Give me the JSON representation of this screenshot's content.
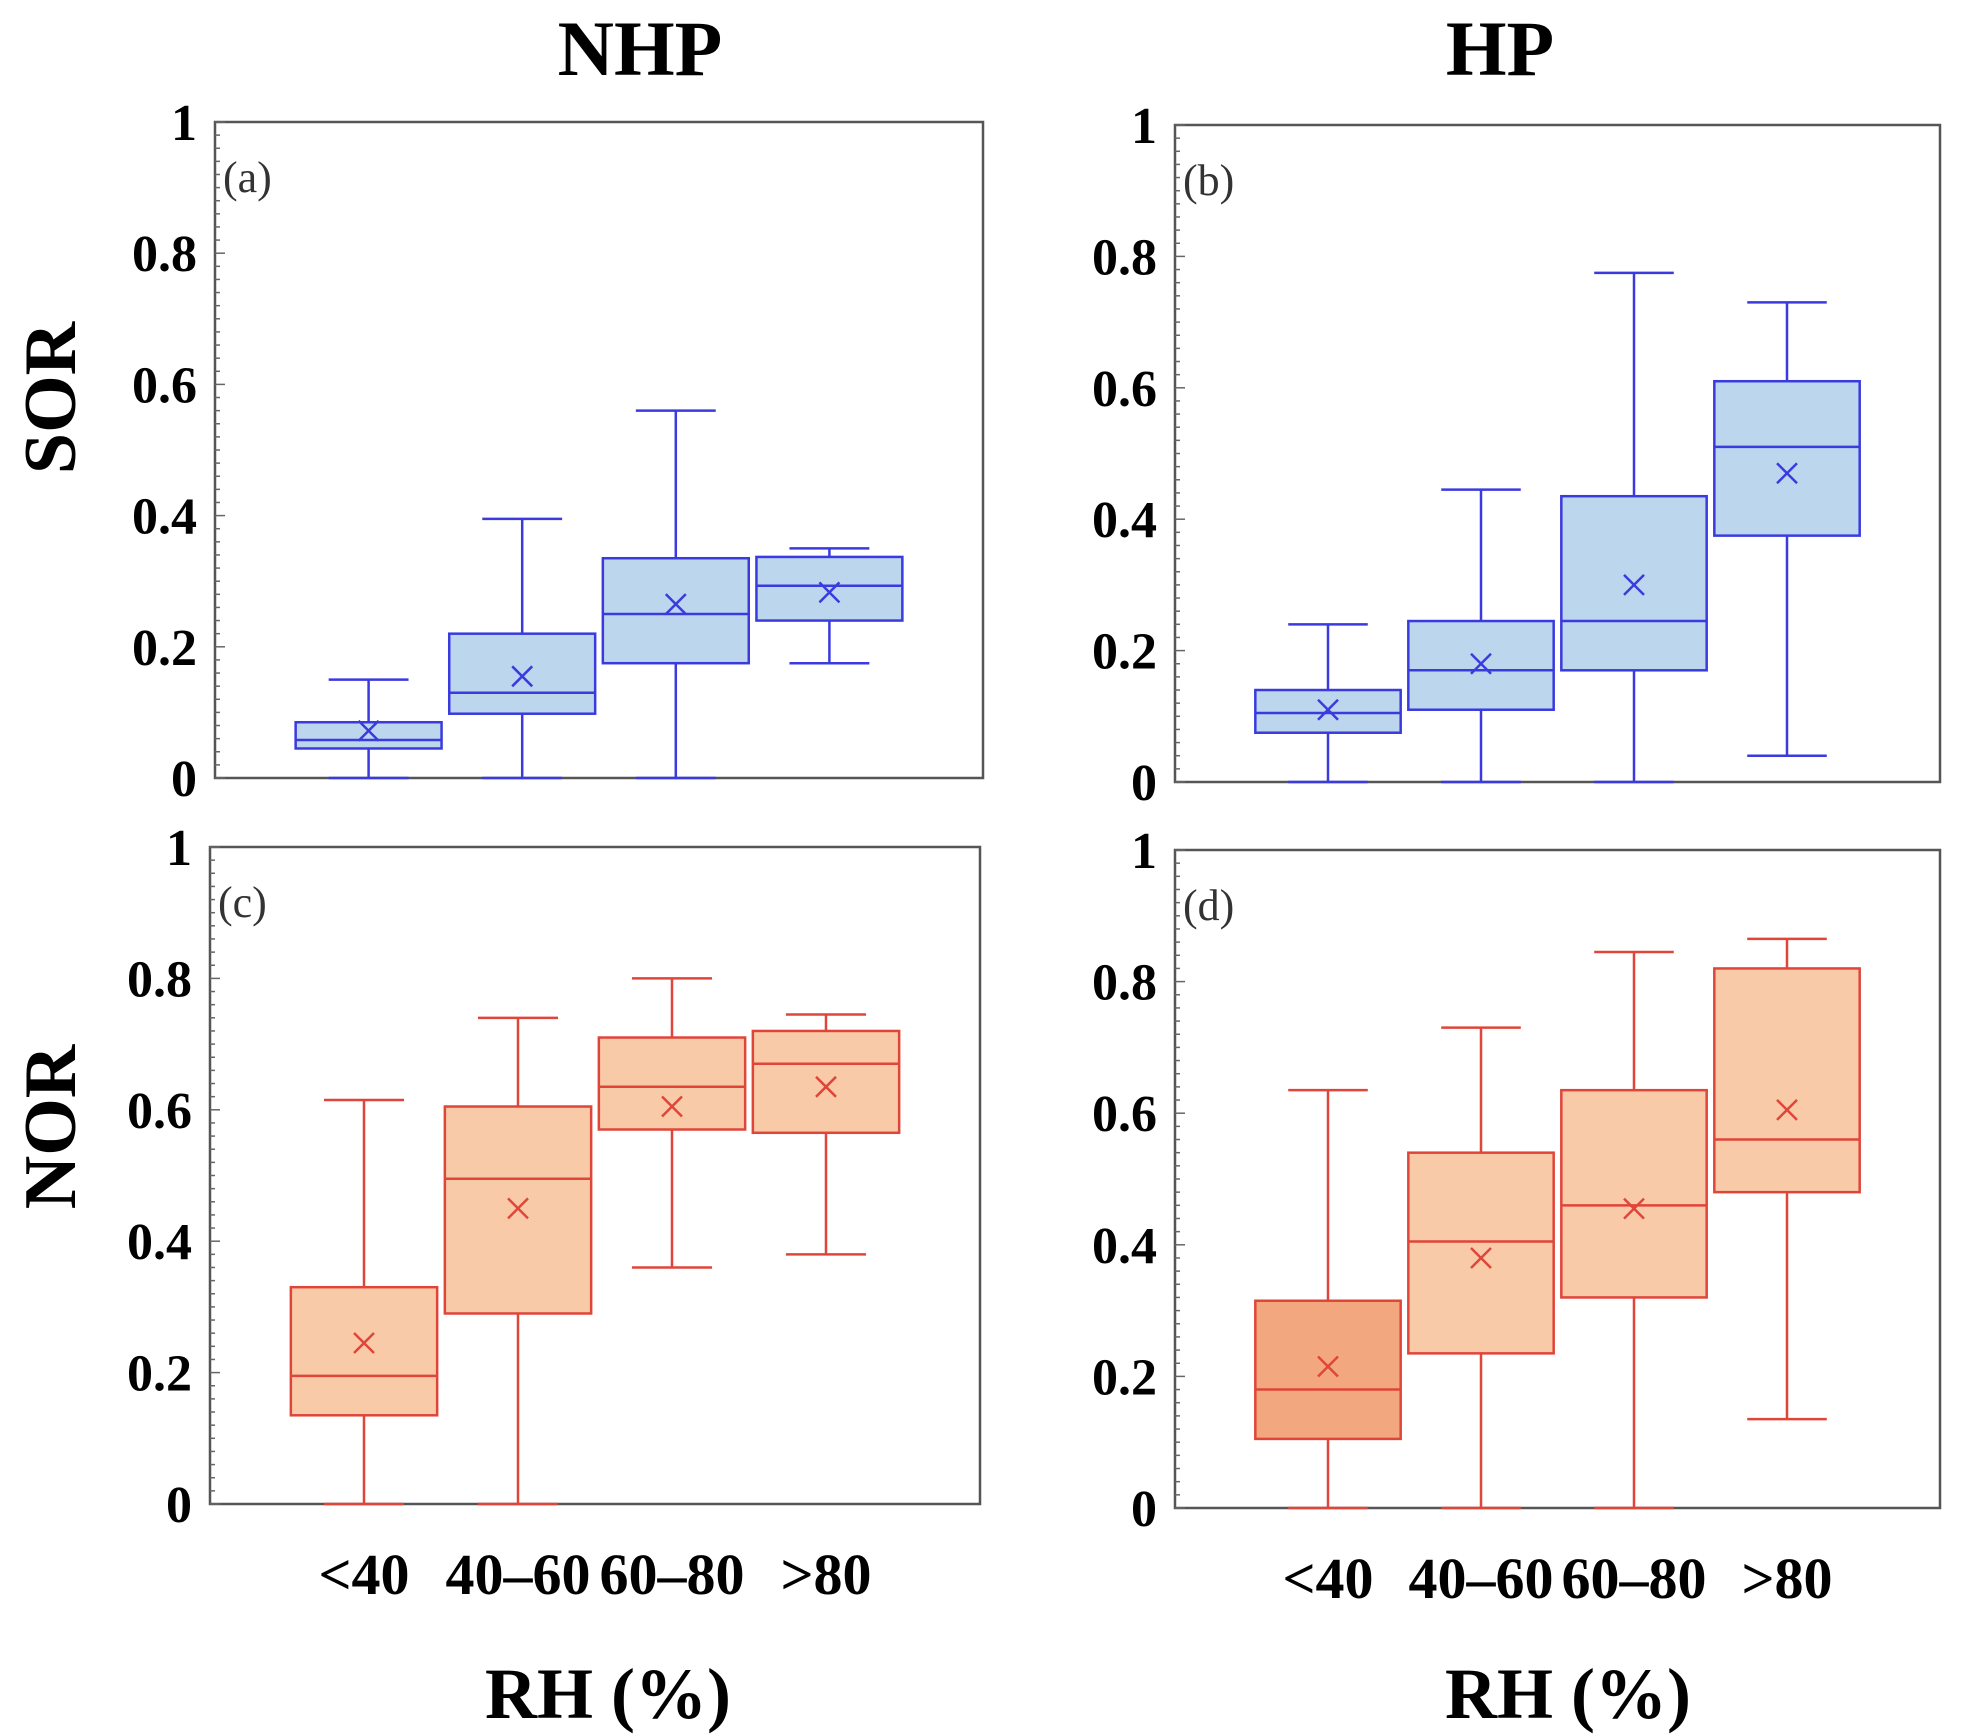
{
  "figure": {
    "column_titles": [
      "NHP",
      "HP"
    ],
    "row_labels": [
      "SOR",
      "NOR"
    ],
    "x_title": "RH (%)"
  },
  "chart_data": [
    {
      "type": "box",
      "panel": "(a)",
      "group": "NHP",
      "ylabel": "SOR",
      "ylim": [
        0,
        1
      ],
      "yticks": [
        "0",
        "0.2",
        "0.4",
        "0.6",
        "0.8",
        "1"
      ],
      "categories": [
        "<40",
        "40–60",
        "60–80",
        ">80"
      ],
      "color": "#3a3adf",
      "fill": "#bcd6ee",
      "boxes": [
        {
          "min": 0.0,
          "q1": 0.045,
          "median": 0.058,
          "q3": 0.085,
          "max": 0.15,
          "mean": 0.072
        },
        {
          "min": 0.0,
          "q1": 0.098,
          "median": 0.13,
          "q3": 0.22,
          "max": 0.395,
          "mean": 0.155
        },
        {
          "min": 0.0,
          "q1": 0.175,
          "median": 0.25,
          "q3": 0.335,
          "max": 0.56,
          "mean": 0.265
        },
        {
          "min": 0.175,
          "q1": 0.24,
          "median": 0.293,
          "q3": 0.337,
          "max": 0.35,
          "mean": 0.283
        }
      ]
    },
    {
      "type": "box",
      "panel": "(b)",
      "group": "HP",
      "ylabel": "SOR",
      "ylim": [
        0,
        1
      ],
      "yticks": [
        "0",
        "0.2",
        "0.4",
        "0.6",
        "0.8",
        "1"
      ],
      "categories": [
        "<40",
        "40–60",
        "60–80",
        ">80"
      ],
      "color": "#3a3adf",
      "fill": "#bcd6ee",
      "boxes": [
        {
          "min": 0.0,
          "q1": 0.075,
          "median": 0.105,
          "q3": 0.14,
          "max": 0.24,
          "mean": 0.11
        },
        {
          "min": 0.0,
          "q1": 0.11,
          "median": 0.17,
          "q3": 0.245,
          "max": 0.445,
          "mean": 0.18
        },
        {
          "min": 0.0,
          "q1": 0.17,
          "median": 0.245,
          "q3": 0.435,
          "max": 0.775,
          "mean": 0.3
        },
        {
          "min": 0.04,
          "q1": 0.375,
          "median": 0.51,
          "q3": 0.61,
          "max": 0.73,
          "mean": 0.47
        }
      ]
    },
    {
      "type": "box",
      "panel": "(c)",
      "group": "NHP",
      "ylabel": "NOR",
      "ylim": [
        0,
        1
      ],
      "yticks": [
        "0",
        "0.2",
        "0.4",
        "0.6",
        "0.8",
        "1"
      ],
      "categories": [
        "<40",
        "40–60",
        "60–80",
        ">80"
      ],
      "color": "#e0453a",
      "fill": "#f8caa8",
      "boxes": [
        {
          "min": 0.0,
          "q1": 0.135,
          "median": 0.195,
          "q3": 0.33,
          "max": 0.615,
          "mean": 0.245,
          "fill": "#f8caa8"
        },
        {
          "min": 0.0,
          "q1": 0.29,
          "median": 0.495,
          "q3": 0.605,
          "max": 0.74,
          "mean": 0.45,
          "fill": "#f8caa8"
        },
        {
          "min": 0.36,
          "q1": 0.57,
          "median": 0.635,
          "q3": 0.71,
          "max": 0.8,
          "mean": 0.605,
          "fill": "#f8caa8"
        },
        {
          "min": 0.38,
          "q1": 0.565,
          "median": 0.67,
          "q3": 0.72,
          "max": 0.745,
          "mean": 0.635,
          "fill": "#f8caa8"
        }
      ]
    },
    {
      "type": "box",
      "panel": "(d)",
      "group": "HP",
      "ylabel": "NOR",
      "ylim": [
        0,
        1
      ],
      "yticks": [
        "0",
        "0.2",
        "0.4",
        "0.6",
        "0.8",
        "1"
      ],
      "categories": [
        "<40",
        "40–60",
        "60–80",
        ">80"
      ],
      "color": "#e0453a",
      "fill": "#f8caa8",
      "boxes": [
        {
          "min": 0.0,
          "q1": 0.105,
          "median": 0.18,
          "q3": 0.315,
          "max": 0.635,
          "mean": 0.215,
          "fill": "#f2a77e"
        },
        {
          "min": 0.0,
          "q1": 0.235,
          "median": 0.405,
          "q3": 0.54,
          "max": 0.73,
          "mean": 0.38,
          "fill": "#f8caa8"
        },
        {
          "min": 0.0,
          "q1": 0.32,
          "median": 0.46,
          "q3": 0.635,
          "max": 0.845,
          "mean": 0.455,
          "fill": "#f8caa8"
        },
        {
          "min": 0.135,
          "q1": 0.48,
          "median": 0.56,
          "q3": 0.82,
          "max": 0.865,
          "mean": 0.605,
          "fill": "#f8caa8"
        }
      ]
    }
  ]
}
